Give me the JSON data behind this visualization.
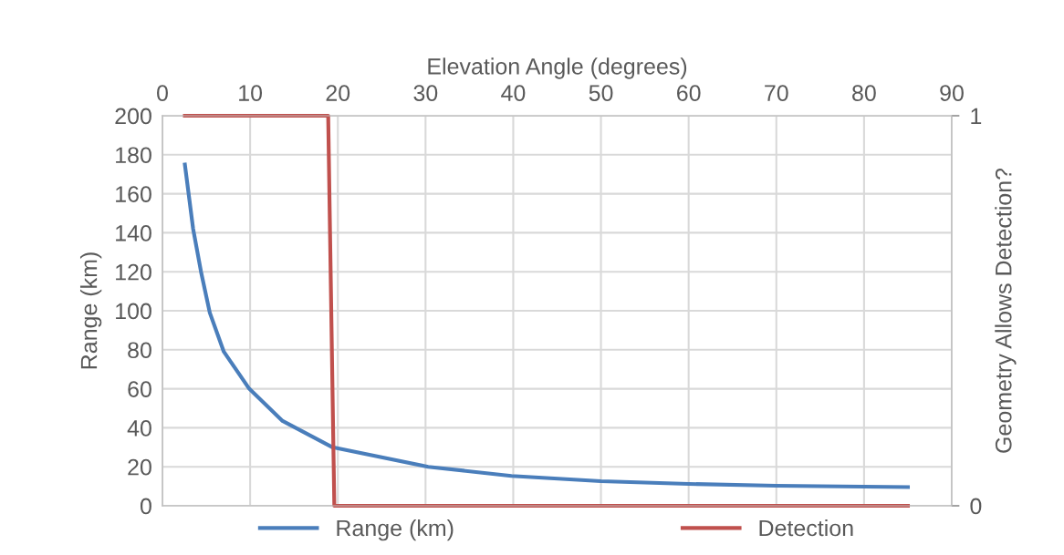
{
  "chart_data": {
    "type": "line",
    "xlabel": "Elevation Angle (degrees)",
    "ylabel": "Range (km)",
    "y2label": "Geometry Allows Detection?",
    "xlim": [
      0,
      90
    ],
    "xticks": [
      0,
      10,
      20,
      30,
      40,
      50,
      60,
      70,
      80,
      90
    ],
    "ylim": [
      0,
      200
    ],
    "yticks": [
      0,
      20,
      40,
      60,
      80,
      100,
      120,
      140,
      160,
      180,
      200
    ],
    "y2lim": [
      0,
      1
    ],
    "y2ticks": [
      0,
      1
    ],
    "grid": true,
    "legend": "bottom",
    "marker": "none",
    "line_style": "solid",
    "series": [
      {
        "name": "Range (km)",
        "color": "#4a7ebb",
        "x": [
          2.56,
          3.5,
          4.4,
          5.4,
          7.0,
          9.9,
          13.7,
          19.4,
          30.3,
          39.8,
          50,
          60,
          70,
          80,
          85
        ],
        "values": [
          175,
          142,
          120,
          99,
          79,
          60,
          43.5,
          30,
          20,
          15.3,
          12.6,
          11.2,
          10.3,
          9.8,
          9.6
        ]
      },
      {
        "name": "Detection",
        "color": "#c0504d",
        "axis": "y2",
        "x": [
          2.56,
          18.9,
          19.6,
          85
        ],
        "values": [
          1,
          1,
          0,
          0
        ]
      }
    ]
  }
}
